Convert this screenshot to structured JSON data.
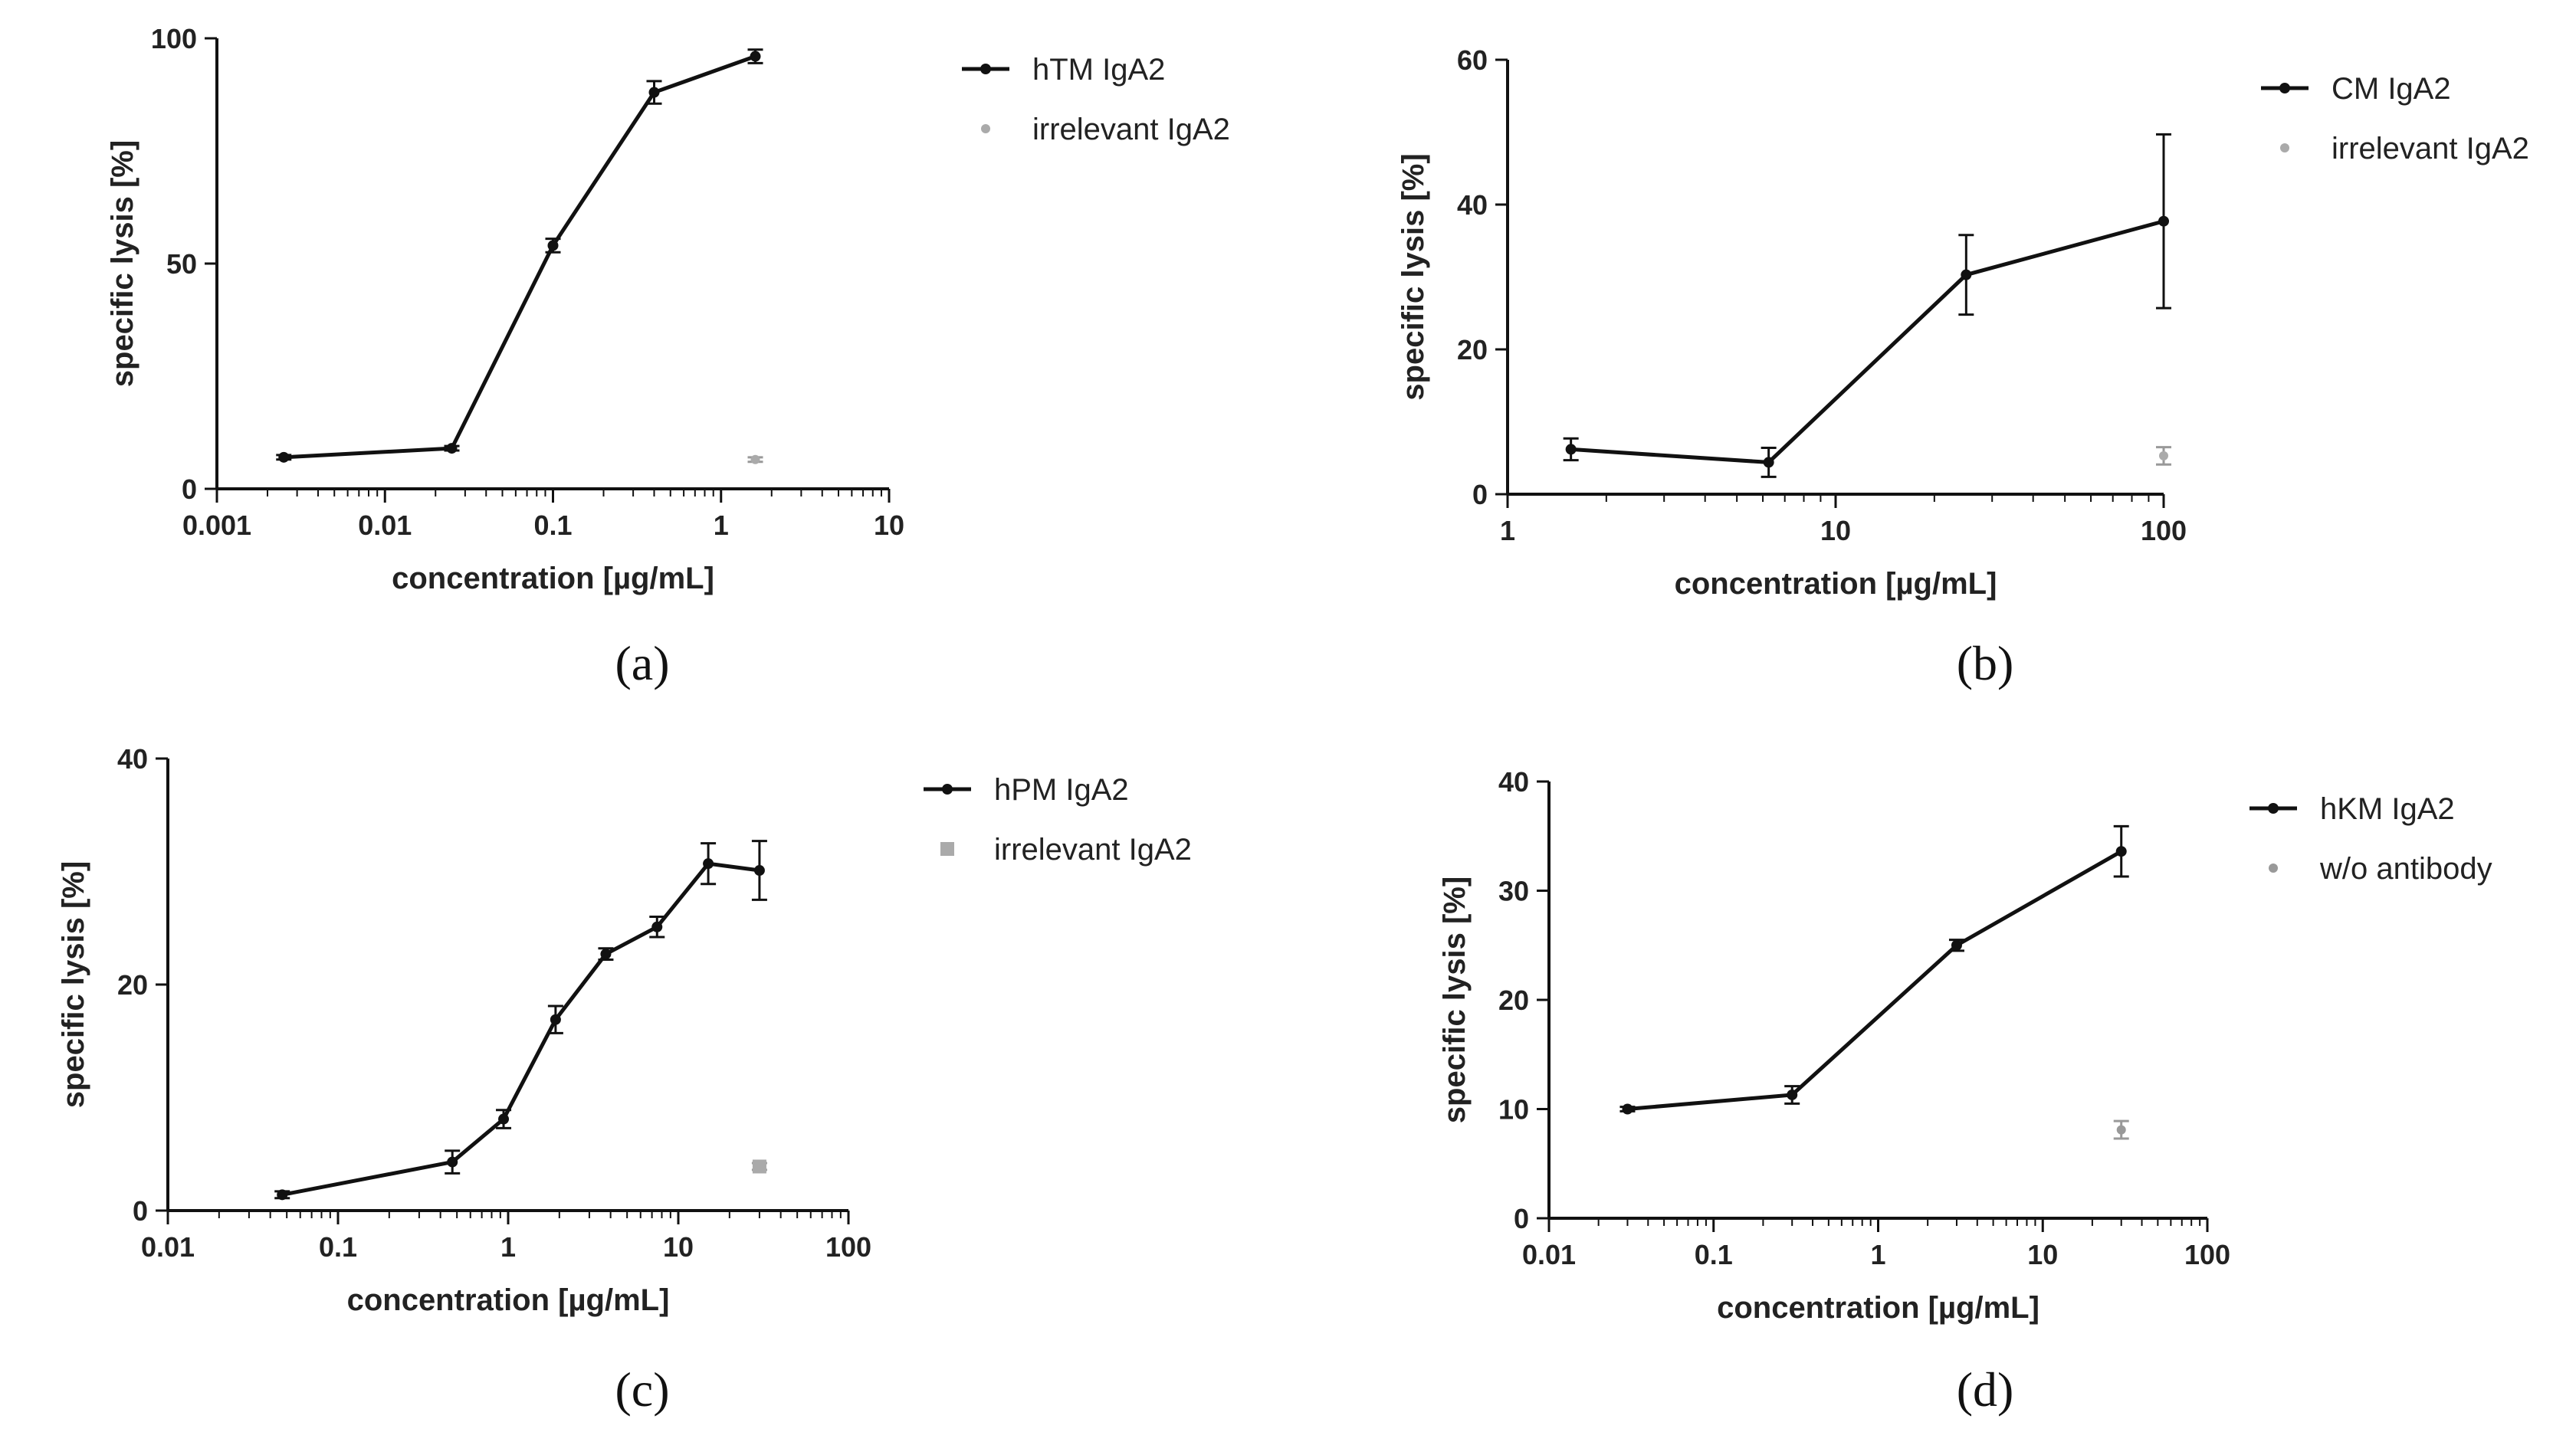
{
  "chart_data": [
    {
      "panel_label": "(a)",
      "type": "line",
      "xscale": "log",
      "xlabel": "concentration [µg/mL]",
      "ylabel": "specific lysis [%]",
      "xlim": [
        0.001,
        10
      ],
      "ylim": [
        0,
        100
      ],
      "xticks": [
        0.001,
        0.01,
        0.1,
        1,
        10
      ],
      "xtick_labels": [
        "0.001",
        "0.01",
        "0.1",
        "1",
        "10"
      ],
      "yticks": [
        0,
        50,
        100
      ],
      "ytick_labels": [
        "0",
        "50",
        "100"
      ],
      "series": [
        {
          "name": "hTM IgA2",
          "style": "line",
          "color": "#111111",
          "x": [
            0.0025,
            0.025,
            0.1,
            0.4,
            1.6
          ],
          "y": [
            7,
            9,
            54,
            88,
            96
          ],
          "err": [
            0.5,
            0.5,
            1.5,
            2.5,
            1.5
          ]
        },
        {
          "name": "irrelevant IgA2",
          "style": "point",
          "color": "#aaaaaa",
          "x": [
            1.6
          ],
          "y": [
            6.5
          ],
          "err": [
            0.5
          ]
        }
      ]
    },
    {
      "panel_label": "(b)",
      "type": "line",
      "xscale": "log",
      "xlabel": "concentration [µg/mL]",
      "ylabel": "specific lysis [%]",
      "xlim": [
        1,
        100
      ],
      "ylim": [
        0,
        60
      ],
      "xticks": [
        1,
        10,
        100
      ],
      "xtick_labels": [
        "1",
        "10",
        "100"
      ],
      "yticks": [
        0,
        20,
        40,
        60
      ],
      "ytick_labels": [
        "0",
        "20",
        "40",
        "60"
      ],
      "series": [
        {
          "name": "CM IgA2",
          "style": "line",
          "color": "#111111",
          "x": [
            1.56,
            6.25,
            25,
            100
          ],
          "y": [
            6.2,
            4.4,
            30.3,
            37.7
          ],
          "err": [
            1.5,
            2,
            5.5,
            12
          ]
        },
        {
          "name": "irrelevant IgA2",
          "style": "point",
          "color": "#aaaaaa",
          "x": [
            100
          ],
          "y": [
            5.3
          ],
          "err": [
            1.2
          ]
        }
      ]
    },
    {
      "panel_label": "(c)",
      "type": "line",
      "xscale": "log",
      "xlabel": "concentration [µg/mL]",
      "ylabel": "specific lysis [%]",
      "xlim": [
        0.01,
        100
      ],
      "ylim": [
        0,
        40
      ],
      "xticks": [
        0.01,
        0.1,
        1,
        10,
        100
      ],
      "xtick_labels": [
        "0.01",
        "0.1",
        "1",
        "10",
        "100"
      ],
      "yticks": [
        0,
        20,
        40
      ],
      "ytick_labels": [
        "0",
        "20",
        "40"
      ],
      "series": [
        {
          "name": "hPM IgA2",
          "style": "line",
          "color": "#111111",
          "x": [
            0.047,
            0.47,
            0.94,
            1.9,
            3.75,
            7.5,
            15,
            30
          ],
          "y": [
            1.4,
            4.3,
            8.1,
            16.9,
            22.7,
            25.1,
            30.7,
            30.1
          ],
          "err": [
            0.3,
            1,
            0.8,
            1.2,
            0.5,
            0.9,
            1.8,
            2.6
          ]
        },
        {
          "name": "irrelevant IgA2",
          "style": "square",
          "color": "#aaaaaa",
          "x": [
            30
          ],
          "y": [
            3.9
          ],
          "err": [
            0.3
          ]
        }
      ]
    },
    {
      "panel_label": "(d)",
      "type": "line",
      "xscale": "log",
      "xlabel": "concentration [µg/mL]",
      "ylabel": "specific lysis [%]",
      "xlim": [
        0.01,
        100
      ],
      "ylim": [
        0,
        40
      ],
      "xticks": [
        0.01,
        0.1,
        1,
        10,
        100
      ],
      "xtick_labels": [
        "0.01",
        "0.1",
        "1",
        "10",
        "100"
      ],
      "yticks": [
        0,
        10,
        20,
        30,
        40
      ],
      "ytick_labels": [
        "0",
        "10",
        "20",
        "30",
        "40"
      ],
      "series": [
        {
          "name": "hKM IgA2",
          "style": "line",
          "color": "#111111",
          "x": [
            0.03,
            0.3,
            3,
            30
          ],
          "y": [
            10,
            11.3,
            25,
            33.6
          ],
          "err": [
            0.2,
            0.8,
            0.5,
            2.3
          ]
        },
        {
          "name": "w/o antibody",
          "style": "point",
          "color": "#999999",
          "x": [
            30
          ],
          "y": [
            8.1
          ],
          "err": [
            0.8
          ]
        }
      ]
    }
  ]
}
